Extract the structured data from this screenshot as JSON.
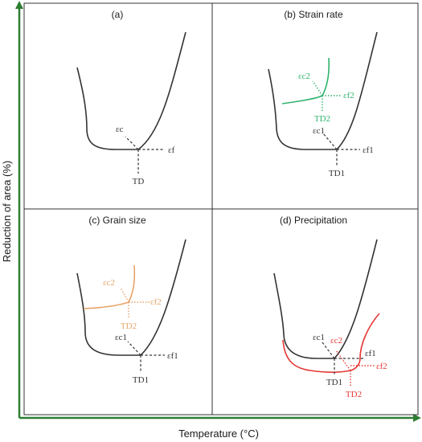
{
  "axes": {
    "x_title": "Temperature (°C)",
    "y_title": "Reduction of area (%)",
    "axis_color": "#2e7d32"
  },
  "colors": {
    "base_curve": "#333333",
    "strain_rate": "#2fb36b",
    "grain_size": "#e8a46a",
    "precipitation": "#e53935"
  },
  "panels": {
    "a": {
      "title": "(a)",
      "labels": {
        "ec": "εc",
        "ef": "εf",
        "td": "TD"
      }
    },
    "b": {
      "title": "(b) Strain rate",
      "labels": {
        "ec1": "εc1",
        "ef1": "εf1",
        "td1": "TD1",
        "ec2": "εc2",
        "ef2": "εf2",
        "td2": "TD2"
      }
    },
    "c": {
      "title": "(c) Grain size",
      "labels": {
        "ec1": "εc1",
        "ef1": "εf1",
        "td1": "TD1",
        "ec2": "εc2",
        "ef2": "εf2",
        "td2": "TD2"
      }
    },
    "d": {
      "title": "(d) Precipitation",
      "labels": {
        "ec1": "εc1",
        "ef1": "εf1",
        "td1": "TD1",
        "ec2": "εc2",
        "ef2": "εf2",
        "td2": "TD2"
      }
    }
  }
}
